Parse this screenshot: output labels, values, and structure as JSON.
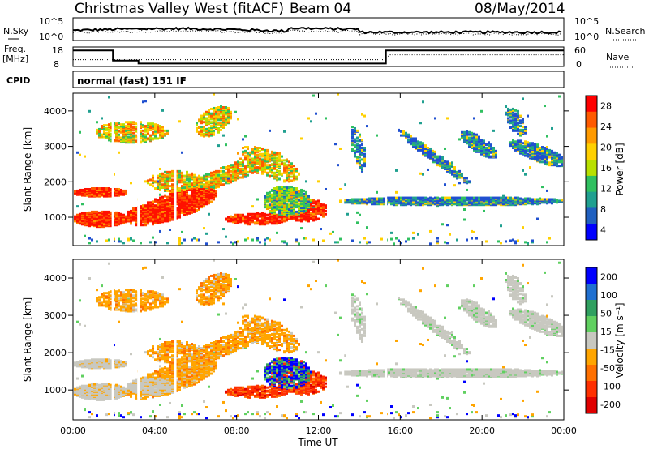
{
  "header": {
    "title": "Christmas Valley West (fitACF)",
    "beam": "Beam 04",
    "date": "08/May/2014"
  },
  "panels": {
    "nsky_label": "N.Sky",
    "nsearch_label": "N.Search",
    "nsky_ticks": [
      "10^5",
      "10^0"
    ],
    "nsearch_ticks": [
      "10^5",
      "10^0"
    ],
    "freq_label": "Freq.",
    "freq_unit": "[MHz]",
    "freq_ticks": [
      "18",
      "8"
    ],
    "nave_label": "Nave",
    "nave_ticks": [
      "60",
      "0"
    ],
    "cpid_label": "CPID",
    "cpid_text": "normal (fast) 151 IF"
  },
  "chart_data": [
    {
      "type": "heatmap",
      "name": "power",
      "ylabel": "Slant Range [km]",
      "yticks": [
        1000,
        2000,
        3000,
        4000
      ],
      "ylim": [
        200,
        4500
      ],
      "xticks": [
        "00:00",
        "04:00",
        "08:00",
        "12:00",
        "16:00",
        "20:00",
        "00:00"
      ],
      "xlim_hours": [
        0,
        24
      ],
      "colorbar": {
        "label": "Power [dB]",
        "ticks": [
          "28",
          "24",
          "20",
          "16",
          "12",
          "8",
          "4"
        ],
        "colors": [
          "#ff0000",
          "#ff5a00",
          "#ff9a00",
          "#ffd000",
          "#b8e000",
          "#30c060",
          "#20a090",
          "#2060c0",
          "#0000ff"
        ]
      }
    },
    {
      "type": "heatmap",
      "name": "velocity",
      "ylabel": "Slant Range [km]",
      "yticks": [
        1000,
        2000,
        3000,
        4000
      ],
      "ylim": [
        200,
        4500
      ],
      "xticks": [
        "00:00",
        "04:00",
        "08:00",
        "12:00",
        "16:00",
        "20:00",
        "00:00"
      ],
      "xlim_hours": [
        0,
        24
      ],
      "xlabel": "Time UT",
      "colorbar": {
        "label": "Velocity [m s⁻¹]",
        "ticks": [
          "200",
          "100",
          "50",
          "15",
          "-15",
          "-50",
          "-100",
          "-200"
        ],
        "colors": [
          "#0000ff",
          "#2070d0",
          "#30a060",
          "#60d060",
          "#c8c8c0",
          "#ffa500",
          "#ff7000",
          "#ff3000",
          "#e00000"
        ]
      }
    }
  ]
}
